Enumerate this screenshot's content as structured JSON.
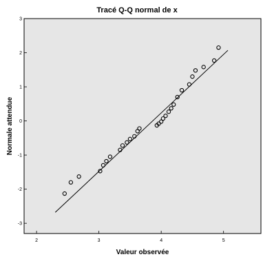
{
  "chart_data": {
    "type": "scatter",
    "title": "Tracé Q-Q normal de x",
    "xlabel": "Valeur observée",
    "ylabel": "Normale attendue",
    "xlim": [
      1.8,
      5.6
    ],
    "ylim": [
      -3.3,
      3.0
    ],
    "xticks": [
      2,
      3,
      4,
      5
    ],
    "yticks": [
      -3,
      -2,
      -1,
      0,
      1,
      2,
      3
    ],
    "xtick_labels": [
      "2",
      "3",
      "4",
      "5"
    ],
    "ytick_labels": [
      "-3",
      "-2",
      "-1",
      "0",
      "1",
      "2",
      "3"
    ],
    "grid": false,
    "plot_background": "#e6e6e6",
    "marker_color": "#000000",
    "reference_line": {
      "x": [
        2.3,
        5.07
      ],
      "y": [
        -2.68,
        2.07
      ]
    },
    "points": {
      "x": [
        2.45,
        2.55,
        2.68,
        3.02,
        3.07,
        3.12,
        3.18,
        3.34,
        3.38,
        3.45,
        3.5,
        3.57,
        3.62,
        3.65,
        3.93,
        3.96,
        4.0,
        4.03,
        4.07,
        4.12,
        4.16,
        4.2,
        4.26,
        4.33,
        4.45,
        4.5,
        4.55,
        4.68,
        4.85,
        4.92
      ],
      "y": [
        -2.13,
        -1.8,
        -1.63,
        -1.47,
        -1.3,
        -1.18,
        -1.05,
        -0.85,
        -0.72,
        -0.63,
        -0.53,
        -0.45,
        -0.3,
        -0.22,
        -0.13,
        -0.08,
        -0.02,
        0.07,
        0.15,
        0.27,
        0.37,
        0.48,
        0.7,
        0.9,
        1.07,
        1.3,
        1.48,
        1.58,
        1.77,
        2.15
      ]
    }
  }
}
